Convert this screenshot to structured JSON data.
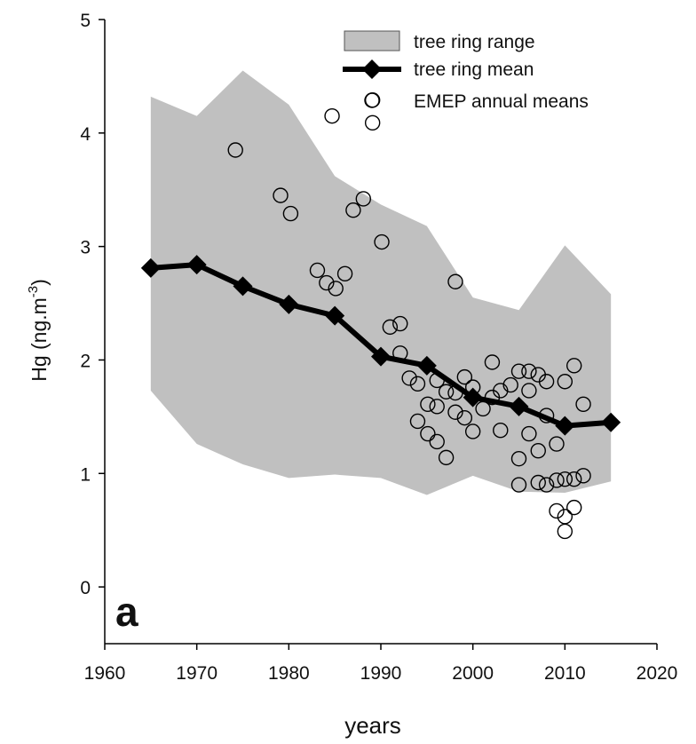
{
  "chart_data": {
    "type": "line",
    "panel_label": "a",
    "x_label": "years",
    "y_label_parts": [
      "Hg (ng.m",
      "-3",
      ")"
    ],
    "xlim": [
      1960,
      2020
    ],
    "xticks": [
      1960,
      1970,
      1980,
      1990,
      2000,
      2010,
      2020
    ],
    "ylim": [
      -0.5,
      5
    ],
    "yticks": [
      0,
      1,
      2,
      3,
      4,
      5
    ],
    "x": [
      1965,
      1970,
      1975,
      1980,
      1985,
      1990,
      1995,
      2000,
      2005,
      2010,
      2015
    ],
    "series": [
      {
        "name": "tree ring range",
        "color": "#c0c0c0",
        "values": [
          4.32,
          4.15,
          4.55,
          4.25,
          3.62,
          3.37,
          3.18,
          2.55,
          2.44,
          3.01,
          2.58
        ],
        "lower_values": [
          1.73,
          1.26,
          1.08,
          0.96,
          0.99,
          0.96,
          0.81,
          0.98,
          0.84,
          0.83,
          0.93
        ]
      },
      {
        "name": "tree ring mean",
        "color": "#000000",
        "values": [
          2.81,
          2.84,
          2.65,
          2.49,
          2.39,
          2.03,
          1.95,
          1.67,
          1.59,
          1.42,
          1.45
        ]
      }
    ],
    "scatter": {
      "name": "EMEP annual means",
      "color": "#000000",
      "x": [
        1974.2,
        1984.7,
        1989.1,
        1989.1,
        1979.1,
        1980.2,
        1988.1,
        1987.0,
        1990.1,
        1983.1,
        1984.1,
        1985.1,
        1986.1,
        1998.1,
        1991.0,
        1992.1,
        1992.1,
        1993.1,
        1994.0,
        1994.0,
        1995.1,
        1995.1,
        1996.1,
        1996.1,
        1996.1,
        1997.1,
        1997.1,
        1998.1,
        1998.1,
        1999.1,
        1999.1,
        2000.0,
        2000.0,
        2001.1,
        2002.1,
        2002.1,
        2003.0,
        2003.0,
        2004.1,
        2005.0,
        2005.0,
        2005.0,
        2006.1,
        2006.1,
        2006.1,
        2007.1,
        2007.1,
        2008.0,
        2008.0,
        2008.0,
        2009.1,
        2009.1,
        2010.0,
        2010.0,
        2010.0,
        2011.0,
        2011.0,
        2012.0,
        2012.0,
        2010.0,
        2009.1,
        2007.1,
        2011.0
      ],
      "values": [
        3.85,
        4.15,
        4.29,
        4.09,
        3.45,
        3.29,
        3.42,
        3.32,
        3.04,
        2.79,
        2.68,
        2.63,
        2.76,
        2.69,
        2.29,
        2.32,
        2.06,
        1.84,
        1.79,
        1.46,
        1.61,
        1.35,
        1.82,
        1.59,
        1.28,
        1.72,
        1.14,
        1.71,
        1.54,
        1.85,
        1.49,
        1.76,
        1.37,
        1.57,
        1.98,
        1.67,
        1.73,
        1.38,
        1.78,
        1.9,
        1.13,
        0.9,
        1.9,
        1.73,
        1.35,
        1.2,
        1.87,
        1.81,
        0.9,
        1.51,
        1.26,
        0.67,
        1.81,
        0.62,
        0.49,
        1.95,
        0.7,
        0.98,
        1.61,
        0.95,
        0.94,
        0.92,
        0.95
      ]
    }
  }
}
